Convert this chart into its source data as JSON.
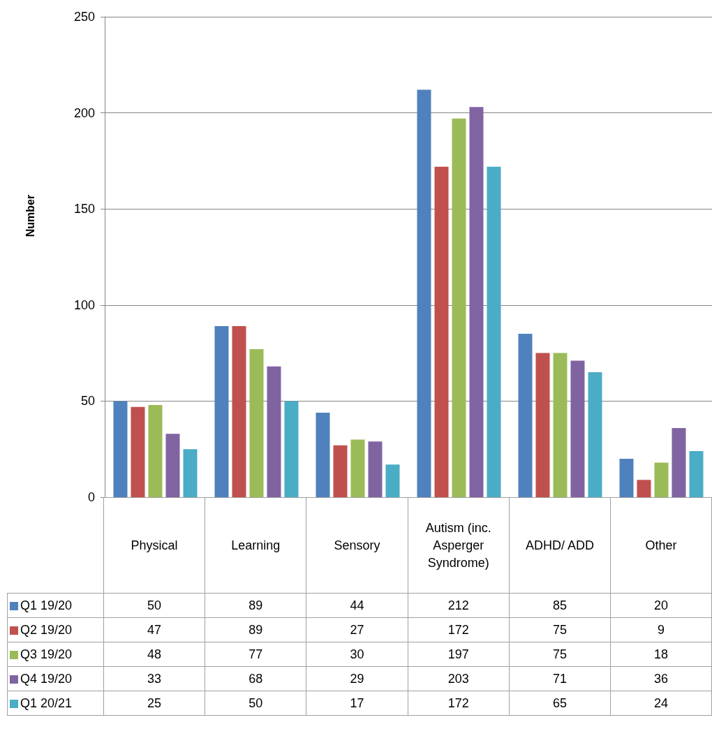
{
  "chart_data": {
    "type": "bar",
    "ylabel": "Number",
    "categories": [
      "Physical",
      "Learning",
      "Sensory",
      "Autism (inc. Asperger Syndrome)",
      "ADHD/ ADD",
      "Other"
    ],
    "series": [
      {
        "name": "Q1 19/20",
        "color": "#4f81bd",
        "values": [
          50,
          89,
          44,
          212,
          85,
          20
        ]
      },
      {
        "name": "Q2 19/20",
        "color": "#c0504d",
        "values": [
          47,
          89,
          27,
          172,
          75,
          9
        ]
      },
      {
        "name": "Q3 19/20",
        "color": "#9bbb59",
        "values": [
          48,
          77,
          30,
          197,
          75,
          18
        ]
      },
      {
        "name": "Q4 19/20",
        "color": "#8064a2",
        "values": [
          33,
          68,
          29,
          203,
          71,
          36
        ]
      },
      {
        "name": "Q1 20/21",
        "color": "#4bacc6",
        "values": [
          25,
          50,
          17,
          172,
          65,
          24
        ]
      }
    ],
    "ylim": [
      0,
      250
    ],
    "yticks": [
      0,
      50,
      100,
      150,
      200,
      250
    ],
    "grid": "y",
    "legend": "bottom left",
    "data_labels": true
  }
}
